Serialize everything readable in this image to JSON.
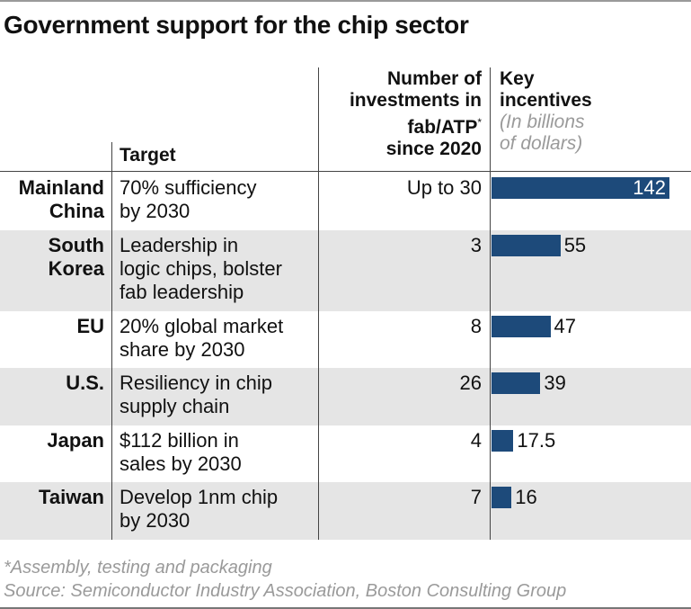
{
  "chart_data": {
    "type": "table",
    "title": "Government support for the chip sector",
    "columns": {
      "target": "Target",
      "investments": [
        "Number of",
        "investments in",
        "fab/ATP",
        "since 2020"
      ],
      "investments_mark": "*",
      "incentives": [
        "Key",
        "incentives"
      ],
      "incentives_unit": [
        "(In billions",
        "of dollars)"
      ]
    },
    "rows": [
      {
        "country": [
          "Mainland",
          "China"
        ],
        "target": [
          "70% sufficiency",
          "by 2030"
        ],
        "investments": "Up to 30",
        "incentives": 142,
        "incentives_label": "142"
      },
      {
        "country": [
          "South",
          "Korea"
        ],
        "target": [
          "Leadership in",
          "logic chips, bolster",
          "fab leadership"
        ],
        "investments": "3",
        "incentives": 55,
        "incentives_label": "55"
      },
      {
        "country": [
          "EU"
        ],
        "target": [
          "20% global market",
          "share by 2030"
        ],
        "investments": "8",
        "incentives": 47,
        "incentives_label": "47"
      },
      {
        "country": [
          "U.S."
        ],
        "target": [
          "Resiliency in chip",
          "supply chain"
        ],
        "investments": "26",
        "incentives": 39,
        "incentives_label": "39"
      },
      {
        "country": [
          "Japan"
        ],
        "target": [
          "$112 billion in",
          "sales by 2030"
        ],
        "investments": "4",
        "incentives": 17.5,
        "incentives_label": "17.5"
      },
      {
        "country": [
          "Taiwan"
        ],
        "target": [
          "Develop 1nm chip",
          "by 2030"
        ],
        "investments": "7",
        "incentives": 16,
        "incentives_label": "16"
      }
    ],
    "bar_color": "#1d4a7a",
    "alt_row_color": "#e5e5e5"
  },
  "footnote": "*Assembly, testing and packaging",
  "source": "Source: Semiconductor Industry Association, Boston Consulting Group"
}
